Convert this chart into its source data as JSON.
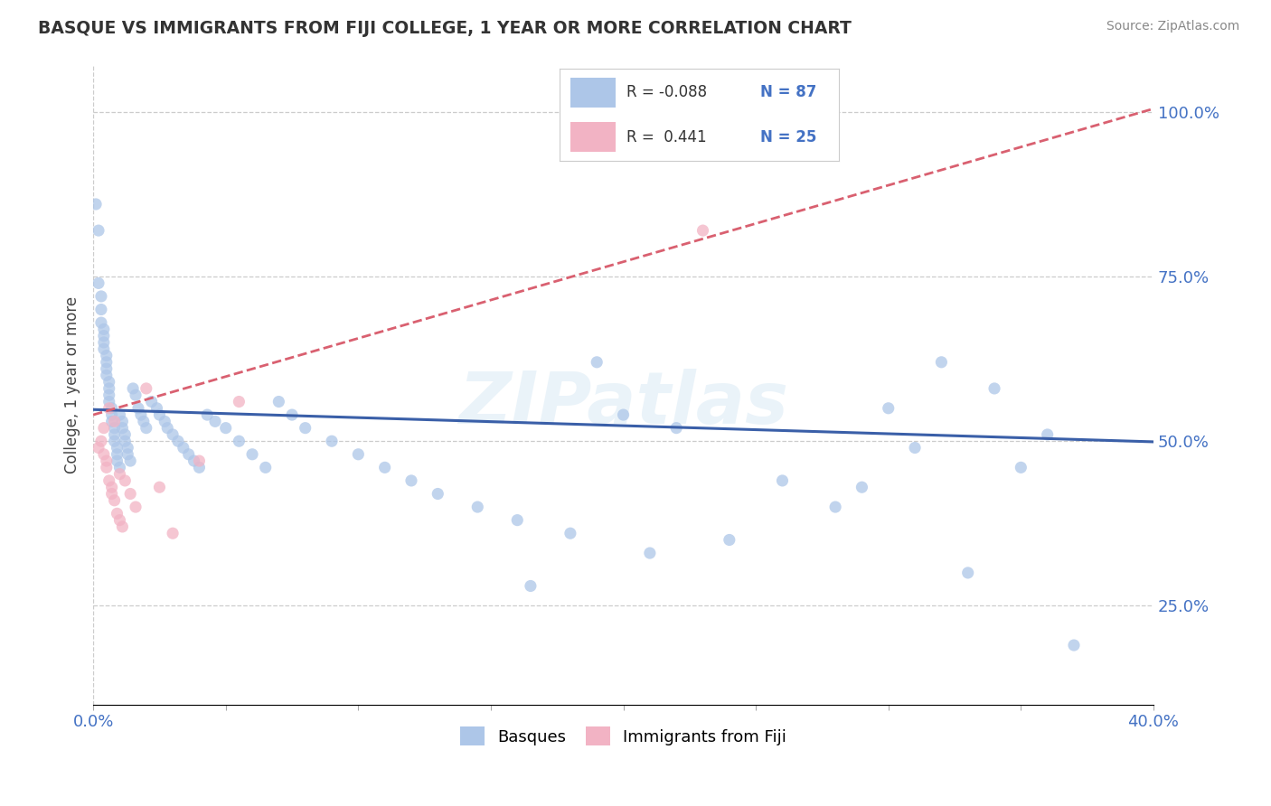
{
  "title": "BASQUE VS IMMIGRANTS FROM FIJI COLLEGE, 1 YEAR OR MORE CORRELATION CHART",
  "source_text": "Source: ZipAtlas.com",
  "ylabel": "College, 1 year or more",
  "xlim": [
    0.0,
    0.4
  ],
  "ylim": [
    0.1,
    1.07
  ],
  "xticks": [
    0.0,
    0.05,
    0.1,
    0.15,
    0.2,
    0.25,
    0.3,
    0.35,
    0.4
  ],
  "yticks": [
    0.25,
    0.5,
    0.75,
    1.0
  ],
  "yticklabels": [
    "25.0%",
    "50.0%",
    "75.0%",
    "100.0%"
  ],
  "legend_R1": "-0.088",
  "legend_N1": "87",
  "legend_R2": "0.441",
  "legend_N2": "25",
  "basque_color": "#adc6e8",
  "fiji_color": "#f2b3c4",
  "basque_line_color": "#3a5fa8",
  "fiji_line_color": "#d96070",
  "watermark": "ZIPatlas",
  "background_color": "#ffffff",
  "grid_color": "#cccccc",
  "title_color": "#333333",
  "tick_color": "#4472c4",
  "source_color": "#888888",
  "basque_x": [
    0.001,
    0.002,
    0.002,
    0.003,
    0.003,
    0.003,
    0.004,
    0.004,
    0.004,
    0.004,
    0.005,
    0.005,
    0.005,
    0.005,
    0.006,
    0.006,
    0.006,
    0.006,
    0.007,
    0.007,
    0.007,
    0.008,
    0.008,
    0.008,
    0.009,
    0.009,
    0.009,
    0.01,
    0.01,
    0.011,
    0.011,
    0.012,
    0.012,
    0.013,
    0.013,
    0.014,
    0.015,
    0.016,
    0.017,
    0.018,
    0.019,
    0.02,
    0.022,
    0.024,
    0.025,
    0.027,
    0.028,
    0.03,
    0.032,
    0.034,
    0.036,
    0.038,
    0.04,
    0.043,
    0.046,
    0.05,
    0.055,
    0.06,
    0.065,
    0.07,
    0.075,
    0.08,
    0.09,
    0.1,
    0.11,
    0.12,
    0.13,
    0.145,
    0.16,
    0.18,
    0.2,
    0.22,
    0.24,
    0.19,
    0.29,
    0.3,
    0.32,
    0.34,
    0.35,
    0.36,
    0.165,
    0.21,
    0.26,
    0.28,
    0.33,
    0.31,
    0.37
  ],
  "basque_y": [
    0.86,
    0.82,
    0.74,
    0.72,
    0.7,
    0.68,
    0.67,
    0.66,
    0.65,
    0.64,
    0.63,
    0.62,
    0.61,
    0.6,
    0.59,
    0.58,
    0.57,
    0.56,
    0.55,
    0.54,
    0.53,
    0.52,
    0.51,
    0.5,
    0.49,
    0.48,
    0.47,
    0.46,
    0.54,
    0.53,
    0.52,
    0.51,
    0.5,
    0.49,
    0.48,
    0.47,
    0.58,
    0.57,
    0.55,
    0.54,
    0.53,
    0.52,
    0.56,
    0.55,
    0.54,
    0.53,
    0.52,
    0.51,
    0.5,
    0.49,
    0.48,
    0.47,
    0.46,
    0.54,
    0.53,
    0.52,
    0.5,
    0.48,
    0.46,
    0.56,
    0.54,
    0.52,
    0.5,
    0.48,
    0.46,
    0.44,
    0.42,
    0.4,
    0.38,
    0.36,
    0.54,
    0.52,
    0.35,
    0.62,
    0.43,
    0.55,
    0.62,
    0.58,
    0.46,
    0.51,
    0.28,
    0.33,
    0.44,
    0.4,
    0.3,
    0.49,
    0.19
  ],
  "fiji_x": [
    0.002,
    0.003,
    0.004,
    0.004,
    0.005,
    0.005,
    0.006,
    0.006,
    0.007,
    0.007,
    0.008,
    0.008,
    0.009,
    0.01,
    0.01,
    0.011,
    0.012,
    0.014,
    0.016,
    0.02,
    0.025,
    0.23,
    0.04,
    0.055,
    0.03
  ],
  "fiji_y": [
    0.49,
    0.5,
    0.52,
    0.48,
    0.47,
    0.46,
    0.55,
    0.44,
    0.43,
    0.42,
    0.41,
    0.53,
    0.39,
    0.45,
    0.38,
    0.37,
    0.44,
    0.42,
    0.4,
    0.58,
    0.43,
    0.82,
    0.47,
    0.56,
    0.36
  ],
  "basque_line_x0": 0.0,
  "basque_line_y0": 0.548,
  "basque_line_x1": 0.4,
  "basque_line_y1": 0.499,
  "fiji_line_x0": 0.0,
  "fiji_line_y0": 0.54,
  "fiji_line_x1": 0.4,
  "fiji_line_y1": 1.005
}
